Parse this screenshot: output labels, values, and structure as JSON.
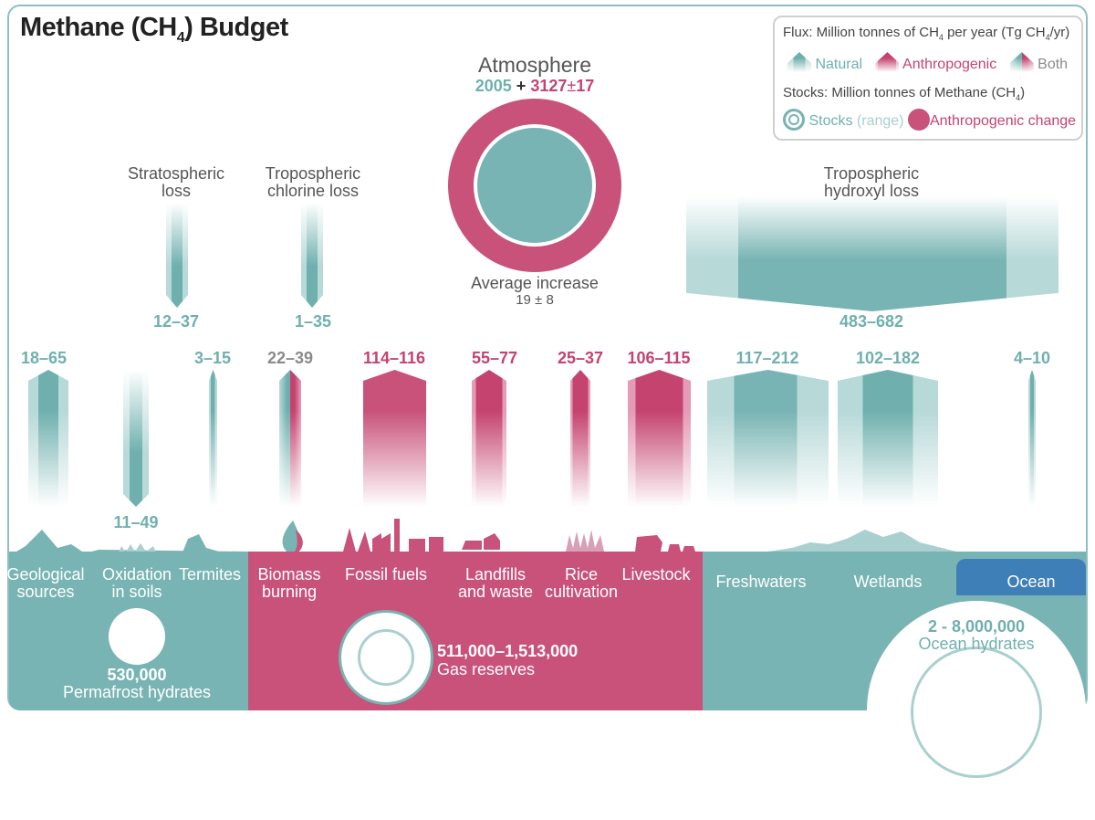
{
  "title": {
    "prefix": "Methane (CH",
    "sub": "4",
    "suffix": ") Budget"
  },
  "legend": {
    "flux_prefix": "Flux: Million tonnes of CH",
    "flux_sub": "4",
    "flux_mid": " per year (Tg CH",
    "flux_sub2": "4",
    "flux_suffix": "/yr)",
    "natural": "Natural",
    "anthropogenic": "Anthropogenic",
    "both": "Both",
    "stocks_prefix": "Stocks: Million tonnes of Methane (CH",
    "stocks_sub": "4",
    "stocks_suffix": ")",
    "stocks": "Stocks",
    "range": "(range)",
    "anthro_change": "Anthropogenic change"
  },
  "atmosphere": {
    "title": "Atmosphere",
    "natural": "2005",
    "plus": "+",
    "anthro": "3127",
    "pm": "±",
    "err": "17",
    "increase_label": "Average increase",
    "increase_value": "19 ± 8"
  },
  "sinks": [
    {
      "label1": "Stratospheric",
      "label2": "loss",
      "value": "12–37"
    },
    {
      "label1": "Tropospheric",
      "label2": "chlorine loss",
      "value": "1–35"
    },
    {
      "label1": "Tropospheric",
      "label2": "hydroxyl loss",
      "value": "483–682"
    }
  ],
  "fluxes": [
    {
      "value": "18–65",
      "type": "natural"
    },
    {
      "value": "11–49",
      "type": "natural"
    },
    {
      "value": "3–15",
      "type": "natural"
    },
    {
      "value": "22–39",
      "type": "both"
    },
    {
      "value": "114–116",
      "type": "anthropogenic"
    },
    {
      "value": "55–77",
      "type": "anthropogenic"
    },
    {
      "value": "25–37",
      "type": "anthropogenic"
    },
    {
      "value": "106–115",
      "type": "anthropogenic"
    },
    {
      "value": "117–212",
      "type": "natural"
    },
    {
      "value": "102–182",
      "type": "natural"
    },
    {
      "value": "4–10",
      "type": "natural"
    }
  ],
  "sources": [
    {
      "l1": "Geological",
      "l2": "sources"
    },
    {
      "l1": "Oxidation",
      "l2": "in soils"
    },
    {
      "l1": "Termites",
      "l2": ""
    },
    {
      "l1": "Biomass",
      "l2": "burning"
    },
    {
      "l1": "Fossil fuels",
      "l2": ""
    },
    {
      "l1": "Landfills",
      "l2": "and waste"
    },
    {
      "l1": "Rice",
      "l2": "cultivation"
    },
    {
      "l1": "Livestock",
      "l2": ""
    },
    {
      "l1": "Freshwaters",
      "l2": ""
    },
    {
      "l1": "Wetlands",
      "l2": ""
    },
    {
      "l1": "Ocean",
      "l2": ""
    }
  ],
  "stocks": {
    "permafrost_value": "530,000",
    "permafrost_label": "Permafrost hydrates",
    "gas_value": "511,000–1,513,000",
    "gas_label": "Gas reserves",
    "ocean_value": "2 - 8,000,000",
    "ocean_label": "Ocean hydrates"
  },
  "colors": {
    "natural": "#78b4b3",
    "anthropogenic": "#c8527a",
    "ocean": "#3f7fb8"
  }
}
